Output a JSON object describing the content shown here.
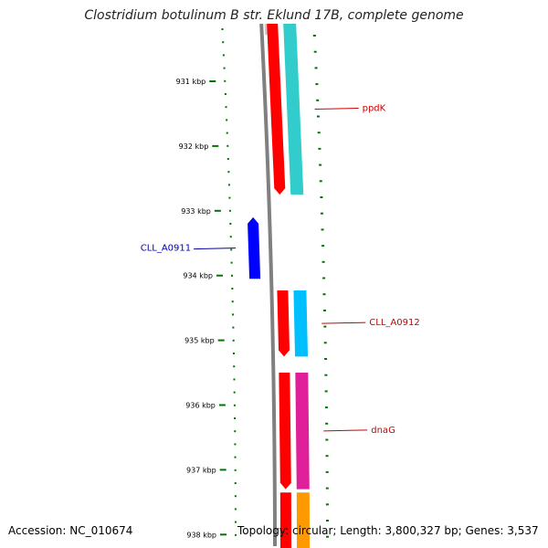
{
  "title": "Clostridium botulinum B str. Eklund 17B, complete genome",
  "footer": {
    "accession": "Accession: NC_010674",
    "topology": "Topology: circular; Length: 3,800,327 bp; Genes: 3,537"
  },
  "ticks": [
    {
      "label": "931 kbp",
      "kbp": 931
    },
    {
      "label": "932 kbp",
      "kbp": 932
    },
    {
      "label": "933 kbp",
      "kbp": 933
    },
    {
      "label": "934 kbp",
      "kbp": 934
    },
    {
      "label": "935 kbp",
      "kbp": 935
    },
    {
      "label": "936 kbp",
      "kbp": 936
    },
    {
      "label": "937 kbp",
      "kbp": 937
    },
    {
      "label": "938 kbp",
      "kbp": 938
    }
  ],
  "genes": [
    {
      "name": "ppdK",
      "strand": "forward",
      "start_kbp": 930.0,
      "end_kbp": 932.75,
      "color": "#ff0000",
      "label_color": "#cc0000",
      "annot_color": "#33cccc"
    },
    {
      "name": "CLL_A0911",
      "strand": "reverse",
      "start_kbp": 933.1,
      "end_kbp": 934.05,
      "color": "#0000ff",
      "label_color": "#0000aa"
    },
    {
      "name": "CLL_A0912",
      "strand": "forward",
      "start_kbp": 934.23,
      "end_kbp": 935.25,
      "color": "#ff0000",
      "label_color": "#cc0000",
      "annot_color": "#00bfff"
    },
    {
      "name": "dnaG",
      "strand": "forward",
      "start_kbp": 935.5,
      "end_kbp": 937.3,
      "color": "#ff0000",
      "label_color": "#cc0000",
      "annot_color": "#e0209a"
    },
    {
      "name": "",
      "strand": "forward",
      "start_kbp": 937.35,
      "end_kbp": 938.3,
      "color": "#ff0000",
      "annot_color": "#ff9900"
    }
  ],
  "colors": {
    "backbone": "#808080",
    "ticks": "#007700"
  }
}
